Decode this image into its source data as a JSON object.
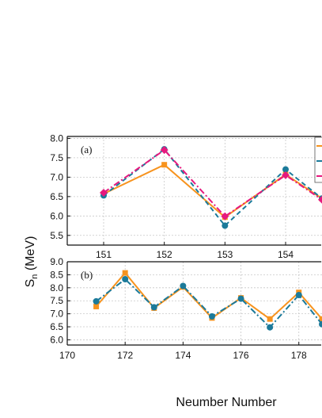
{
  "chart_data": [
    {
      "type": "line",
      "panel_label": "(a)",
      "xlim": [
        150.4,
        154.6
      ],
      "ylim": [
        5.25,
        8.05
      ],
      "xticks": [
        "151",
        "152",
        "153",
        "154"
      ],
      "yticks": [
        "5.5",
        "6.0",
        "6.5",
        "7.0",
        "7.5",
        "8.0"
      ],
      "grid": true,
      "legend_position": "top-right (clipped)",
      "series": [
        {
          "color": "#f7931e",
          "line": "solid",
          "marker": "square",
          "x": [
            151,
            152,
            153,
            154,
            154.6
          ],
          "y": [
            6.57,
            7.32,
            5.97,
            7.07,
            6.45
          ]
        },
        {
          "color": "#1b7a9a",
          "line": "dashed",
          "marker": "circle",
          "x": [
            151,
            152,
            153,
            154,
            154.6
          ],
          "y": [
            6.53,
            7.72,
            5.75,
            7.2,
            6.45
          ]
        },
        {
          "color": "#e6197e",
          "line": "dashdot",
          "marker": "diamond",
          "x": [
            151,
            152,
            153,
            154,
            154.6
          ],
          "y": [
            6.6,
            7.7,
            5.99,
            7.05,
            6.42
          ]
        }
      ]
    },
    {
      "type": "line",
      "panel_label": "(b)",
      "xlim": [
        170,
        178.8
      ],
      "ylim": [
        5.8,
        9.0
      ],
      "xticks": [
        "170",
        "172",
        "174",
        "176",
        "178"
      ],
      "yticks": [
        "6.0",
        "6.5",
        "7.0",
        "7.5",
        "8.0",
        "8.5",
        "9.0"
      ],
      "grid": true,
      "series": [
        {
          "color": "#f7931e",
          "line": "solid",
          "marker": "square",
          "x": [
            171,
            172,
            173,
            174,
            175,
            176,
            177,
            178,
            178.8
          ],
          "y": [
            7.28,
            8.57,
            7.22,
            8.03,
            6.84,
            7.61,
            6.8,
            7.82,
            6.8
          ]
        },
        {
          "color": "#1b7a9a",
          "line": "dashdot",
          "marker": "circle",
          "x": [
            171,
            172,
            173,
            174,
            175,
            176,
            177,
            178,
            178.8
          ],
          "y": [
            7.48,
            8.33,
            7.25,
            8.07,
            6.9,
            7.58,
            6.48,
            7.72,
            6.6
          ]
        }
      ]
    }
  ],
  "ylabel": "S",
  "ylabel_subscript": "n",
  "ylabel_unit": " (MeV)",
  "xlabel": "Neumber Number"
}
